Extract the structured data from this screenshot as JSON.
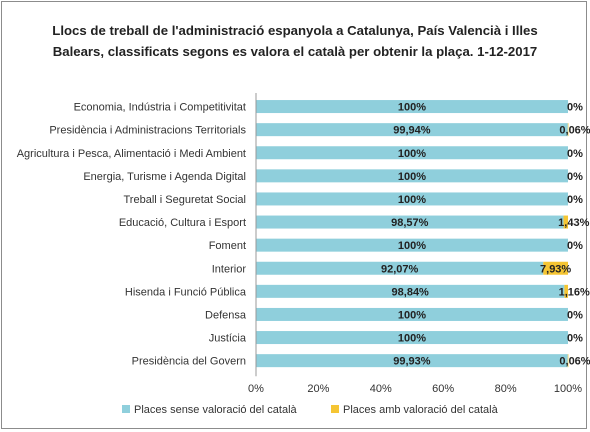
{
  "chart_data": {
    "type": "bar",
    "orientation": "horizontal",
    "stacked": true,
    "title_line1": "Llocs de treball de l'administració  espanyola a Catalunya, País Valencià i Illes",
    "title_line2": "Balears, classificats segons es valora el català per obtenir la plaça. 1-12-2017",
    "categories": [
      "Economia, Indústria i Competitivitat",
      "Presidència i Administracions Territorials",
      "Agricultura i Pesca, Alimentació i Medi Ambient",
      "Energia, Turisme i Agenda Digital",
      "Treball i Seguretat Social",
      "Educació, Cultura i Esport",
      "Foment",
      "Interior",
      "Hisenda i Funció Pública",
      "Defensa",
      "Justícia",
      "Presidència del Govern"
    ],
    "series": [
      {
        "name": "Places sense valoració del català",
        "color": "#8fcfdc",
        "values": [
          100,
          99.94,
          100,
          100,
          100,
          98.57,
          100,
          92.07,
          98.84,
          100,
          100,
          99.93
        ],
        "labels": [
          "100%",
          "99,94%",
          "100%",
          "100%",
          "100%",
          "98,57%",
          "100%",
          "92,07%",
          "98,84%",
          "100%",
          "100%",
          "99,93%"
        ]
      },
      {
        "name": "Places amb valoració del català",
        "color": "#f5c533",
        "values": [
          0,
          0.06,
          0,
          0,
          0,
          1.43,
          0,
          7.93,
          1.16,
          0,
          0,
          0.06
        ],
        "labels": [
          "0%",
          "0,06%",
          "0%",
          "0%",
          "0%",
          "1,43%",
          "0%",
          "7,93%",
          "1,16%",
          "0%",
          "0%",
          "0,06%"
        ]
      }
    ],
    "x_ticks": [
      "0%",
      "20%",
      "40%",
      "60%",
      "80%",
      "100%"
    ],
    "xlim": [
      0,
      100
    ],
    "grid": false,
    "legend_position": "bottom"
  }
}
